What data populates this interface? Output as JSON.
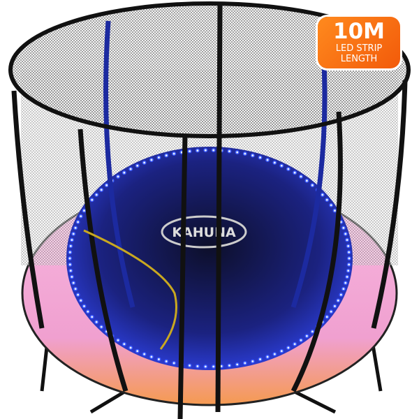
{
  "badge": {
    "headline": "10M",
    "line1": "LED STRIP",
    "line2": "LENGTH"
  },
  "logo": {
    "text": "KAHUNA"
  },
  "colors": {
    "badge": "#f56b12",
    "mat": "#1a1f6e",
    "led": "#3b5bff",
    "pad_pink": "#f4a8d8",
    "pad_orange": "#f0a060",
    "frame": "#111111"
  }
}
